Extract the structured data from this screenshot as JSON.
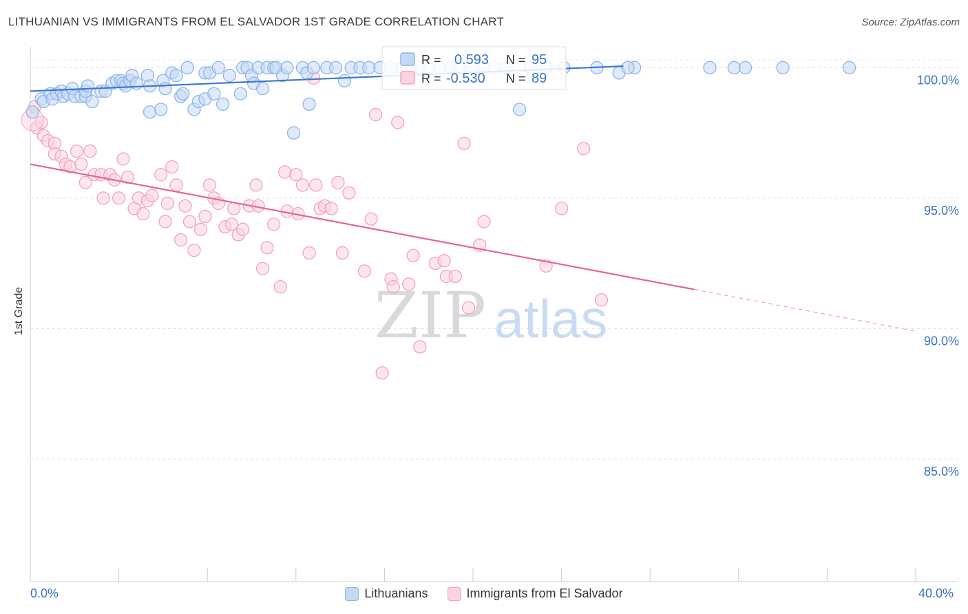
{
  "title": "LITHUANIAN VS IMMIGRANTS FROM EL SALVADOR 1ST GRADE CORRELATION CHART",
  "source": "Source: ZipAtlas.com",
  "watermark": {
    "zip": "ZIP",
    "atlas": "atlas"
  },
  "legend_box": {
    "r_label": "R =",
    "n_label": "N =",
    "blue": {
      "r": "0.593",
      "n": "95"
    },
    "pink": {
      "r": "-0.530",
      "n": "89"
    }
  },
  "legend_bottom": {
    "blue": "Lithuanians",
    "pink": "Immigrants from El Salvador"
  },
  "x_axis_labels": {
    "left": "0.0%",
    "right": "40.0%"
  },
  "colors": {
    "blue": "#3a78d4",
    "blue_fill": "#c5d9f5",
    "pink": "#e8648f",
    "pink_fill": "#fbd3df",
    "axis_text": "#3a72c4"
  },
  "chart_data": {
    "type": "scatter",
    "title": "LITHUANIAN VS IMMIGRANTS FROM EL SALVADOR 1ST GRADE CORRELATION CHART",
    "xlabel": "",
    "ylabel": "1st Grade",
    "xlim": [
      0,
      40
    ],
    "ylim": [
      80.3,
      100.8
    ],
    "y_ticks": [
      {
        "value": 100,
        "label": "100.0%"
      },
      {
        "value": 95,
        "label": "95.0%"
      },
      {
        "value": 90,
        "label": "90.0%"
      },
      {
        "value": 85,
        "label": "85.0%"
      }
    ],
    "series": [
      {
        "name": "Lithuanians",
        "color": "#3a78d4",
        "R": 0.593,
        "N": 95,
        "trend": {
          "x0": 0,
          "y0": 99.1,
          "x1": 26.8,
          "y1": 100.06,
          "dashed_to": null
        },
        "points": [
          [
            0.1,
            98.3
          ],
          [
            0.5,
            98.8
          ],
          [
            0.6,
            98.7
          ],
          [
            0.9,
            99.0
          ],
          [
            1.0,
            98.8
          ],
          [
            1.2,
            99.0
          ],
          [
            1.4,
            99.1
          ],
          [
            1.5,
            98.9
          ],
          [
            1.7,
            99.0
          ],
          [
            1.9,
            99.2
          ],
          [
            2.0,
            98.9
          ],
          [
            2.3,
            98.9
          ],
          [
            2.5,
            98.9
          ],
          [
            2.5,
            99.1
          ],
          [
            2.6,
            99.3
          ],
          [
            2.8,
            98.7
          ],
          [
            3.2,
            99.1
          ],
          [
            3.4,
            99.1
          ],
          [
            3.7,
            99.4
          ],
          [
            3.9,
            99.5
          ],
          [
            4.1,
            99.5
          ],
          [
            4.2,
            99.4
          ],
          [
            4.3,
            99.3
          ],
          [
            4.5,
            99.5
          ],
          [
            4.6,
            99.7
          ],
          [
            4.8,
            99.4
          ],
          [
            5.3,
            99.7
          ],
          [
            5.4,
            98.3
          ],
          [
            5.4,
            99.3
          ],
          [
            5.9,
            98.4
          ],
          [
            6.0,
            99.5
          ],
          [
            6.1,
            99.2
          ],
          [
            6.4,
            99.8
          ],
          [
            6.6,
            99.7
          ],
          [
            6.8,
            98.9
          ],
          [
            6.9,
            99.0
          ],
          [
            7.1,
            100.0
          ],
          [
            7.4,
            98.4
          ],
          [
            7.6,
            98.7
          ],
          [
            7.9,
            98.8
          ],
          [
            7.9,
            99.8
          ],
          [
            8.1,
            99.8
          ],
          [
            8.5,
            100.0
          ],
          [
            8.3,
            99.0
          ],
          [
            8.7,
            98.6
          ],
          [
            9.0,
            99.7
          ],
          [
            9.5,
            99.0
          ],
          [
            9.6,
            100.0
          ],
          [
            9.8,
            100.0
          ],
          [
            10.0,
            99.7
          ],
          [
            10.1,
            99.4
          ],
          [
            10.3,
            100.0
          ],
          [
            10.5,
            99.2
          ],
          [
            10.7,
            100.0
          ],
          [
            11.0,
            100.0
          ],
          [
            11.1,
            100.0
          ],
          [
            11.4,
            99.7
          ],
          [
            11.6,
            100.0
          ],
          [
            11.9,
            97.5
          ],
          [
            12.3,
            100.0
          ],
          [
            12.5,
            99.8
          ],
          [
            12.6,
            98.6
          ],
          [
            12.8,
            100.0
          ],
          [
            13.4,
            100.0
          ],
          [
            13.8,
            100.0
          ],
          [
            14.2,
            99.5
          ],
          [
            14.5,
            100.0
          ],
          [
            14.9,
            100.0
          ],
          [
            15.3,
            100.0
          ],
          [
            15.8,
            100.0
          ],
          [
            16.3,
            100.0
          ],
          [
            16.8,
            100.0
          ],
          [
            17.2,
            100.0
          ],
          [
            17.6,
            100.0
          ],
          [
            18.0,
            100.0
          ],
          [
            18.5,
            100.0
          ],
          [
            19.0,
            100.0
          ],
          [
            19.4,
            100.0
          ],
          [
            19.9,
            100.0
          ],
          [
            20.5,
            100.0
          ],
          [
            21.0,
            100.0
          ],
          [
            21.5,
            100.0
          ],
          [
            22.1,
            98.4
          ],
          [
            22.6,
            100.0
          ],
          [
            23.3,
            100.0
          ],
          [
            24.1,
            100.0
          ],
          [
            25.6,
            100.0
          ],
          [
            26.6,
            99.8
          ],
          [
            27.3,
            100.0
          ],
          [
            30.7,
            100.0
          ],
          [
            31.8,
            100.0
          ],
          [
            32.3,
            100.0
          ],
          [
            34.0,
            100.0
          ],
          [
            37.0,
            100.0
          ],
          [
            27.0,
            100.0
          ]
        ]
      },
      {
        "name": "Immigrants from El Salvador",
        "color": "#e8648f",
        "R": -0.53,
        "N": 89,
        "trend": {
          "x0": 0,
          "y0": 96.3,
          "x1": 30.0,
          "y1": 91.5,
          "dashed_to": [
            40,
            89.9
          ]
        },
        "points": [
          [
            0.2,
            98.5
          ],
          [
            0.3,
            97.7
          ],
          [
            0.6,
            97.4
          ],
          [
            0.8,
            97.2
          ],
          [
            1.1,
            97.1
          ],
          [
            1.1,
            96.7
          ],
          [
            1.4,
            96.6
          ],
          [
            1.6,
            96.3
          ],
          [
            1.8,
            96.2
          ],
          [
            2.1,
            96.8
          ],
          [
            2.3,
            96.3
          ],
          [
            2.5,
            95.6
          ],
          [
            2.7,
            96.8
          ],
          [
            2.9,
            95.9
          ],
          [
            3.2,
            95.9
          ],
          [
            3.3,
            95.0
          ],
          [
            3.6,
            95.9
          ],
          [
            3.8,
            95.7
          ],
          [
            4.0,
            95.0
          ],
          [
            4.2,
            96.5
          ],
          [
            4.4,
            95.8
          ],
          [
            4.7,
            94.6
          ],
          [
            4.9,
            95.0
          ],
          [
            5.1,
            94.4
          ],
          [
            5.3,
            94.9
          ],
          [
            5.5,
            95.1
          ],
          [
            5.9,
            95.9
          ],
          [
            6.1,
            94.1
          ],
          [
            6.2,
            94.8
          ],
          [
            6.4,
            96.2
          ],
          [
            6.6,
            95.5
          ],
          [
            6.8,
            93.4
          ],
          [
            7.0,
            94.7
          ],
          [
            7.2,
            94.1
          ],
          [
            7.4,
            93.0
          ],
          [
            7.7,
            93.8
          ],
          [
            7.9,
            94.3
          ],
          [
            8.1,
            95.5
          ],
          [
            8.3,
            95.0
          ],
          [
            8.5,
            94.8
          ],
          [
            8.8,
            93.9
          ],
          [
            9.1,
            94.0
          ],
          [
            9.2,
            94.6
          ],
          [
            9.4,
            93.6
          ],
          [
            9.6,
            93.8
          ],
          [
            9.9,
            94.7
          ],
          [
            10.2,
            95.5
          ],
          [
            10.3,
            94.7
          ],
          [
            10.5,
            92.3
          ],
          [
            10.7,
            93.1
          ],
          [
            11.0,
            94.0
          ],
          [
            11.3,
            91.6
          ],
          [
            11.5,
            96.0
          ],
          [
            11.6,
            94.5
          ],
          [
            12.0,
            95.9
          ],
          [
            12.1,
            94.4
          ],
          [
            12.3,
            95.5
          ],
          [
            12.6,
            92.9
          ],
          [
            12.8,
            99.6
          ],
          [
            12.9,
            95.5
          ],
          [
            13.1,
            94.6
          ],
          [
            13.3,
            94.7
          ],
          [
            13.6,
            94.6
          ],
          [
            13.9,
            95.6
          ],
          [
            14.1,
            92.9
          ],
          [
            14.4,
            95.2
          ],
          [
            15.1,
            92.2
          ],
          [
            15.4,
            94.2
          ],
          [
            15.6,
            98.2
          ],
          [
            15.9,
            88.3
          ],
          [
            16.3,
            91.9
          ],
          [
            16.4,
            91.6
          ],
          [
            16.6,
            97.9
          ],
          [
            17.1,
            91.7
          ],
          [
            17.3,
            92.8
          ],
          [
            17.6,
            89.3
          ],
          [
            18.3,
            92.5
          ],
          [
            18.7,
            92.6
          ],
          [
            18.8,
            92.0
          ],
          [
            19.2,
            92.0
          ],
          [
            19.6,
            97.1
          ],
          [
            19.8,
            90.8
          ],
          [
            20.3,
            93.2
          ],
          [
            20.5,
            94.1
          ],
          [
            23.3,
            92.4
          ],
          [
            24.0,
            94.6
          ],
          [
            25.0,
            96.9
          ],
          [
            25.8,
            91.1
          ],
          [
            0.5,
            97.9
          ]
        ]
      }
    ]
  }
}
